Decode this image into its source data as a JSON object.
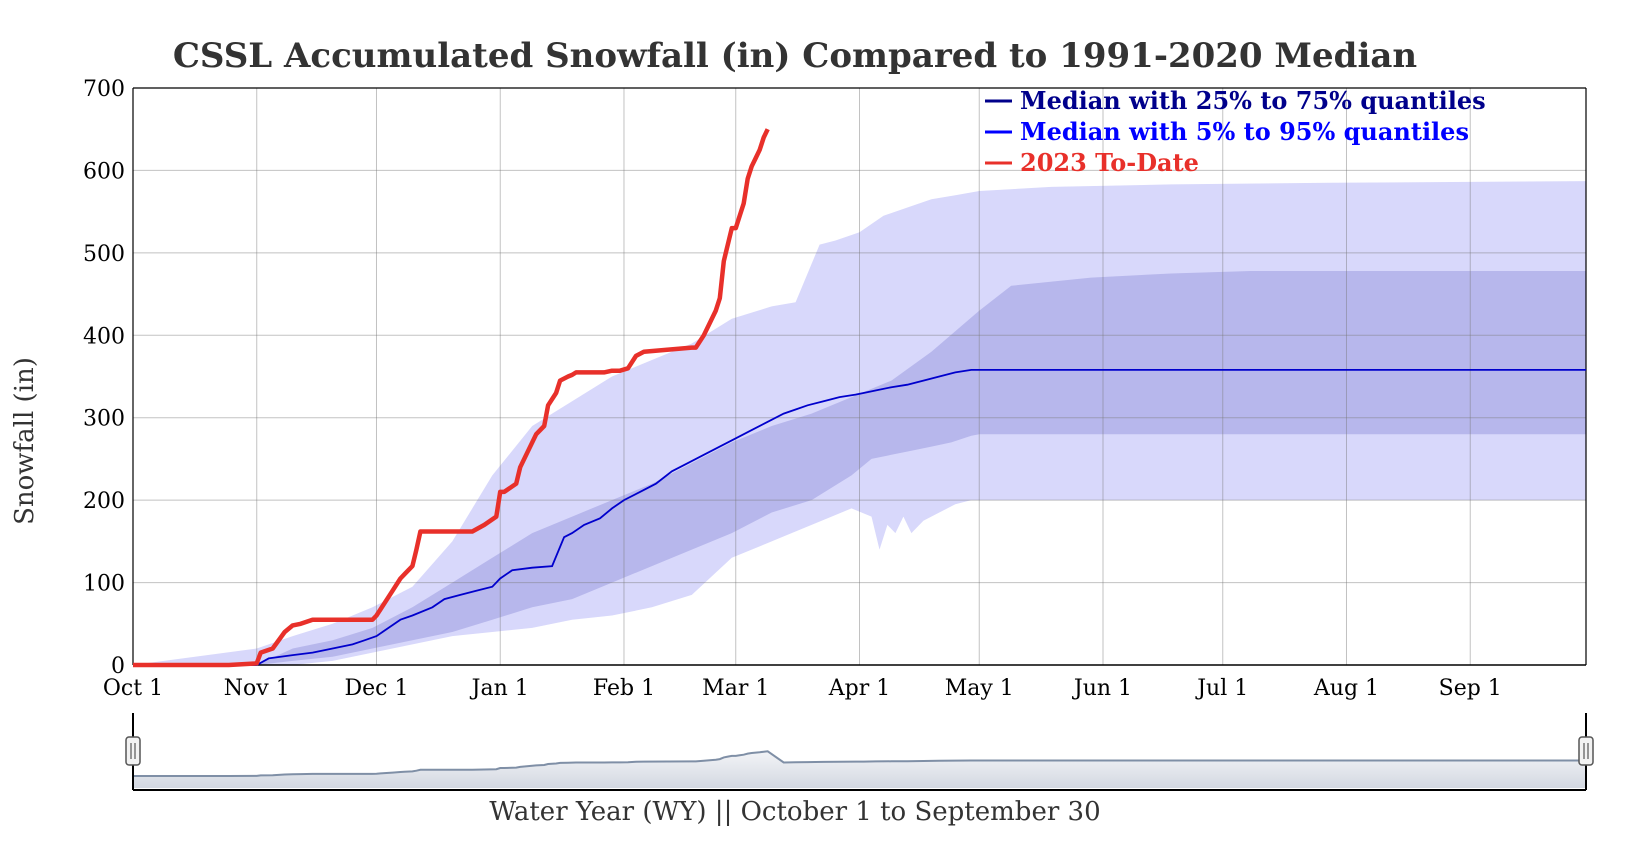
{
  "chart_data": {
    "type": "area",
    "title": "CSSL Accumulated Snowfall (in) Compared to 1991-2020 Median",
    "ylabel": "Snowfall (in)",
    "xlabel": "Water Year (WY) || October 1 to September 30",
    "ylim": [
      0,
      700
    ],
    "xlim_days": [
      0,
      364
    ],
    "y_ticks": [
      0,
      100,
      200,
      300,
      400,
      500,
      600,
      700
    ],
    "x_ticks": [
      {
        "label": "Oct 1",
        "day": 0
      },
      {
        "label": "Nov 1",
        "day": 31
      },
      {
        "label": "Dec 1",
        "day": 61
      },
      {
        "label": "Jan 1",
        "day": 92
      },
      {
        "label": "Feb 1",
        "day": 123
      },
      {
        "label": "Mar 1",
        "day": 151
      },
      {
        "label": "Apr 1",
        "day": 182
      },
      {
        "label": "May 1",
        "day": 212
      },
      {
        "label": "Jun 1",
        "day": 243
      },
      {
        "label": "Jul 1",
        "day": 273
      },
      {
        "label": "Aug 1",
        "day": 304
      },
      {
        "label": "Sep 1",
        "day": 335
      }
    ],
    "grid": true,
    "legend_position": "top-right",
    "legend": [
      {
        "label": "Median with 25% to 75% quantiles",
        "color": "#00008b"
      },
      {
        "label": "Median with 5% to 95% quantiles",
        "color": "#0000ff"
      },
      {
        "label": "2023 To-Date",
        "color": "#e8302a"
      }
    ],
    "colors": {
      "band_outer": "#d8d8fb",
      "band_inner": "#b7b7ec",
      "median": "#0000cc",
      "current": "#e8302a",
      "navigator_fill": "#d3d8e1",
      "navigator_line": "#7f8fa6"
    },
    "series": [
      {
        "name": "2023 To-Date",
        "x": [
          0,
          24,
          31,
          32,
          35,
          38,
          40,
          42,
          45,
          60,
          61,
          63,
          65,
          67,
          68,
          70,
          71,
          72,
          73,
          85,
          88,
          91,
          92,
          93,
          96,
          97,
          99,
          101,
          103,
          104,
          106,
          107,
          109,
          110,
          111,
          116,
          118,
          120,
          122,
          124,
          126,
          128,
          140,
          141,
          143,
          146,
          147,
          148,
          149,
          150,
          151,
          152,
          153,
          154,
          155,
          156,
          157,
          158,
          159
        ],
        "y": [
          0,
          0,
          2,
          15,
          20,
          40,
          48,
          50,
          55,
          55,
          60,
          75,
          90,
          105,
          110,
          120,
          140,
          162,
          162,
          162,
          170,
          180,
          210,
          210,
          220,
          240,
          260,
          280,
          290,
          315,
          330,
          345,
          350,
          352,
          355,
          355,
          355,
          357,
          357,
          360,
          375,
          380,
          385,
          385,
          400,
          430,
          445,
          490,
          510,
          530,
          530,
          545,
          560,
          590,
          605,
          615,
          625,
          640,
          650
        ]
      },
      {
        "name": "Median",
        "x": [
          0,
          31,
          34,
          40,
          45,
          50,
          55,
          58,
          61,
          64,
          67,
          70,
          75,
          78,
          82,
          86,
          90,
          92,
          95,
          100,
          105,
          108,
          110,
          113,
          117,
          120,
          123,
          127,
          131,
          135,
          139,
          143,
          147,
          151,
          155,
          159,
          163,
          166,
          169,
          173,
          177,
          181,
          183,
          186,
          190,
          194,
          198,
          202,
          206,
          210,
          212,
          364
        ],
        "y": [
          0,
          0,
          8,
          12,
          15,
          20,
          25,
          30,
          35,
          45,
          55,
          60,
          70,
          80,
          85,
          90,
          95,
          105,
          115,
          118,
          120,
          155,
          160,
          170,
          178,
          190,
          200,
          210,
          220,
          235,
          245,
          255,
          265,
          275,
          285,
          295,
          305,
          310,
          315,
          320,
          325,
          328,
          330,
          333,
          337,
          340,
          345,
          350,
          355,
          358,
          358,
          358
        ]
      },
      {
        "name": "5% quantile",
        "x": [
          0,
          31,
          40,
          50,
          60,
          70,
          80,
          90,
          100,
          110,
          120,
          130,
          140,
          150,
          155,
          160,
          165,
          170,
          175,
          180,
          185,
          187,
          189,
          191,
          193,
          195,
          198,
          202,
          206,
          210,
          212,
          364
        ],
        "y": [
          0,
          0,
          0,
          5,
          15,
          25,
          35,
          40,
          45,
          55,
          60,
          70,
          85,
          130,
          140,
          150,
          160,
          170,
          180,
          190,
          180,
          140,
          170,
          160,
          180,
          160,
          175,
          185,
          195,
          200,
          200,
          200
        ]
      },
      {
        "name": "25% quantile",
        "x": [
          0,
          31,
          40,
          50,
          60,
          70,
          80,
          90,
          100,
          110,
          120,
          130,
          140,
          150,
          160,
          170,
          180,
          185,
          190,
          195,
          200,
          205,
          210,
          212,
          364
        ],
        "y": [
          0,
          0,
          5,
          10,
          20,
          30,
          40,
          55,
          70,
          80,
          100,
          120,
          140,
          160,
          185,
          200,
          230,
          250,
          255,
          260,
          265,
          270,
          278,
          280,
          280
        ]
      },
      {
        "name": "75% quantile",
        "x": [
          0,
          31,
          40,
          50,
          60,
          70,
          80,
          90,
          100,
          110,
          120,
          130,
          140,
          150,
          160,
          170,
          180,
          190,
          200,
          212,
          220,
          240,
          260,
          280,
          364
        ],
        "y": [
          0,
          0,
          20,
          30,
          45,
          70,
          100,
          130,
          160,
          180,
          200,
          220,
          245,
          270,
          290,
          305,
          325,
          345,
          380,
          430,
          460,
          470,
          475,
          478,
          478
        ]
      },
      {
        "name": "95% quantile",
        "x": [
          0,
          31,
          40,
          50,
          60,
          70,
          80,
          90,
          100,
          110,
          120,
          130,
          140,
          150,
          160,
          166,
          172,
          176,
          182,
          188,
          194,
          200,
          206,
          212,
          230,
          260,
          300,
          364
        ],
        "y": [
          0,
          20,
          35,
          50,
          70,
          95,
          150,
          230,
          290,
          320,
          350,
          370,
          390,
          420,
          435,
          440,
          510,
          515,
          525,
          545,
          555,
          565,
          570,
          575,
          580,
          583,
          585,
          587
        ]
      }
    ]
  }
}
